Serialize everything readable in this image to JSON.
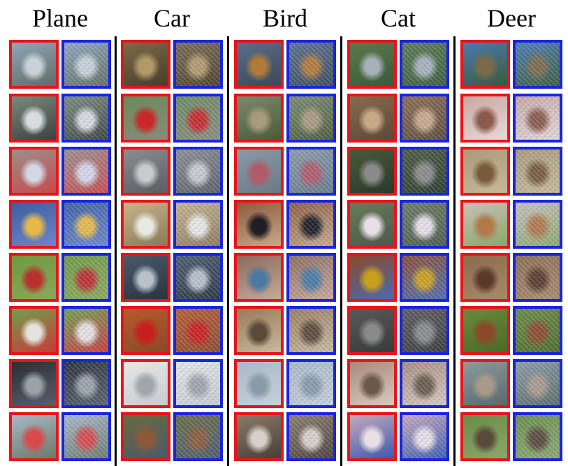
{
  "columns": [
    {
      "label": "Plane",
      "palette": [
        [
          "#8fa6b8",
          "#c9d2d8",
          "#5f6d63"
        ],
        [
          "#7a8a7a",
          "#d8dcdf",
          "#3a4240"
        ],
        [
          "#9a8f8c",
          "#d4d8e6",
          "#c84a4a"
        ],
        [
          "#3c5ea0",
          "#e6b84a",
          "#6a86c8"
        ],
        [
          "#6e9a3e",
          "#b83030",
          "#8aa85a"
        ],
        [
          "#6ea04a",
          "#e6e2e0",
          "#c83a3a"
        ],
        [
          "#2a2e36",
          "#9aa2a6",
          "#56606a"
        ],
        [
          "#a8b8c8",
          "#d84a4a",
          "#6a7a6a"
        ]
      ]
    },
    {
      "label": "Car",
      "palette": [
        [
          "#7a6a4a",
          "#b09a6a",
          "#4a3e2a"
        ],
        [
          "#6a8a5a",
          "#c82828",
          "#8a8a7a"
        ],
        [
          "#8a8e92",
          "#c8cacc",
          "#5a5e62"
        ],
        [
          "#c8b48a",
          "#e8e8e4",
          "#8a7a5a"
        ],
        [
          "#4a5a6a",
          "#b8c0c8",
          "#2a3440"
        ],
        [
          "#b85a2a",
          "#c81e1e",
          "#8a4a2a"
        ],
        [
          "#e6e6e6",
          "#a0a6ac",
          "#c8cccf"
        ],
        [
          "#6a6a3e",
          "#8a5a3a",
          "#4a5a6a"
        ]
      ]
    },
    {
      "label": "Bird",
      "palette": [
        [
          "#5a6e8a",
          "#b07a3a",
          "#3a4a5a"
        ],
        [
          "#7a8a6a",
          "#a89a7a",
          "#4a5a3a"
        ],
        [
          "#8a9aa8",
          "#b05a6a",
          "#6a7a86"
        ],
        [
          "#8a5a3a",
          "#1e1e24",
          "#c8a88a"
        ],
        [
          "#8a6a5a",
          "#4a7aa0",
          "#c8a898"
        ],
        [
          "#9a7a5a",
          "#5a4a3a",
          "#c8b89a"
        ],
        [
          "#a8b8c8",
          "#8a9aa8",
          "#c8d0d8"
        ],
        [
          "#8a7a6a",
          "#d8d0c8",
          "#4a3e36"
        ]
      ]
    },
    {
      "label": "Cat",
      "palette": [
        [
          "#5a7a4a",
          "#a8b0b8",
          "#3a5a3a"
        ],
        [
          "#8a6a4a",
          "#c8a888",
          "#5a4a3a"
        ],
        [
          "#4a5a3a",
          "#8a8a8a",
          "#2a3a2a"
        ],
        [
          "#6a7a5a",
          "#e8e0e8",
          "#4a5a4a"
        ],
        [
          "#8a4a2a",
          "#c8a020",
          "#4a6ab0"
        ],
        [
          "#5a5a5a",
          "#8a8a8a",
          "#3a3a3a"
        ],
        [
          "#a88a7a",
          "#6a5a4a",
          "#d8c8c0"
        ],
        [
          "#c8a8b8",
          "#e8e0e6",
          "#3a5ab0"
        ]
      ]
    },
    {
      "label": "Deer",
      "palette": [
        [
          "#4a7ab0",
          "#7a6a4a",
          "#3a5a3a"
        ],
        [
          "#c8a8a0",
          "#8a5a4a",
          "#e6d8d8"
        ],
        [
          "#a89a7a",
          "#7a5a3a",
          "#c8b898"
        ],
        [
          "#c8c0b8",
          "#b07a4a",
          "#8aa86a"
        ],
        [
          "#8a6a4a",
          "#5a3a2a",
          "#a88a6a"
        ],
        [
          "#6a8a3a",
          "#8a4a2a",
          "#4a6a2a"
        ],
        [
          "#8a9aa0",
          "#a89a8a",
          "#5a6a6a"
        ],
        [
          "#6a8a4a",
          "#5a4a3a",
          "#8aa86a"
        ]
      ]
    }
  ]
}
